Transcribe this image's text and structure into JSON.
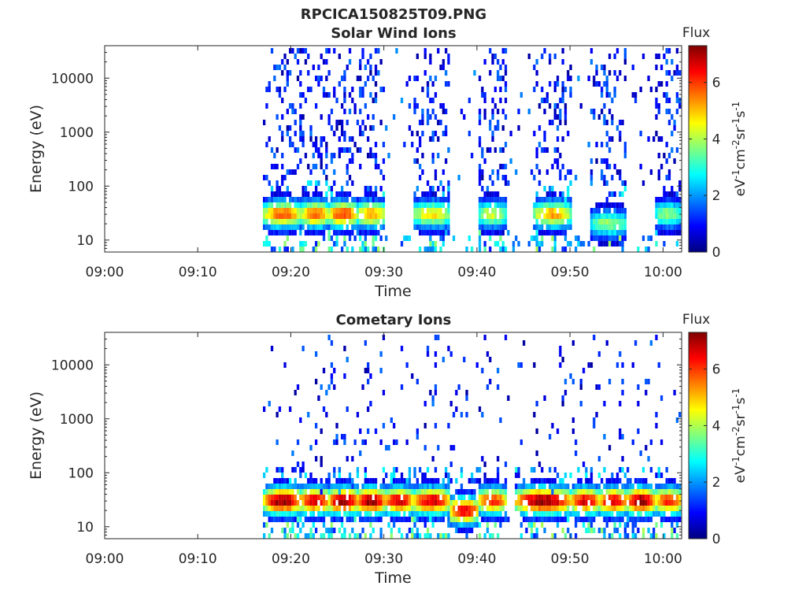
{
  "figure": {
    "title": "RPCICA150825T09.PNG"
  },
  "colorbar_stops": [
    "#00007f",
    "#0000ff",
    "#007fff",
    "#00ffff",
    "#7fff7f",
    "#ffff00",
    "#ff7f00",
    "#ff0000",
    "#7f0000"
  ],
  "chart_data": [
    {
      "type": "heatmap",
      "title": "Solar Wind Ions",
      "xlabel": "Time",
      "ylabel": "Energy (eV)",
      "yscale": "log",
      "ylim": [
        6,
        40000
      ],
      "xlim": [
        "09:00",
        "10:02"
      ],
      "x_ticks": [
        "09:00",
        "09:10",
        "09:20",
        "09:30",
        "09:40",
        "09:50",
        "10:00"
      ],
      "y_ticks": [
        "10",
        "100",
        "1000",
        "10000"
      ],
      "colorbar": {
        "title": "Flux",
        "label": "eV-1cm-2sr-1s-1",
        "range": [
          0,
          7.3
        ],
        "ticks": [
          "0",
          "2",
          "4",
          "6"
        ]
      },
      "data_start": "09:17",
      "bursts": [
        {
          "start": "09:17",
          "end": "09:21",
          "peak_energy_eV": 30,
          "peak_flux": 5.5
        },
        {
          "start": "09:21",
          "end": "09:24",
          "peak_energy_eV": 30,
          "peak_flux": 5.5
        },
        {
          "start": "09:24",
          "end": "09:27",
          "peak_energy_eV": 30,
          "peak_flux": 5.8
        },
        {
          "start": "09:27",
          "end": "09:30",
          "peak_energy_eV": 30,
          "peak_flux": 5.0
        },
        {
          "start": "09:33",
          "end": "09:37",
          "peak_energy_eV": 30,
          "peak_flux": 4.5
        },
        {
          "start": "09:40",
          "end": "09:43",
          "peak_energy_eV": 30,
          "peak_flux": 4.0
        },
        {
          "start": "09:46",
          "end": "09:50",
          "peak_energy_eV": 30,
          "peak_flux": 5.0
        },
        {
          "start": "09:52",
          "end": "09:56",
          "peak_energy_eV": 20,
          "peak_flux": 3.5
        },
        {
          "start": "09:59",
          "end": "10:02",
          "peak_energy_eV": 30,
          "peak_flux": 3.5
        }
      ]
    },
    {
      "type": "heatmap",
      "title": "Cometary Ions",
      "xlabel": "Time",
      "ylabel": "Energy (eV)",
      "yscale": "log",
      "ylim": [
        6,
        40000
      ],
      "xlim": [
        "09:00",
        "10:02"
      ],
      "x_ticks": [
        "09:00",
        "09:10",
        "09:20",
        "09:30",
        "09:40",
        "09:50",
        "10:00"
      ],
      "y_ticks": [
        "10",
        "100",
        "1000",
        "10000"
      ],
      "colorbar": {
        "title": "Flux",
        "label": "eV-1cm-2sr-1s-1",
        "range": [
          0,
          7.3
        ],
        "ticks": [
          "0",
          "2",
          "4",
          "6"
        ]
      },
      "data_start": "09:17",
      "bursts": [
        {
          "start": "09:17",
          "end": "09:21",
          "peak_energy_eV": 30,
          "peak_flux": 7.0
        },
        {
          "start": "09:21",
          "end": "09:24",
          "peak_energy_eV": 30,
          "peak_flux": 6.5
        },
        {
          "start": "09:24",
          "end": "09:27",
          "peak_energy_eV": 30,
          "peak_flux": 7.0
        },
        {
          "start": "09:27",
          "end": "09:30",
          "peak_energy_eV": 30,
          "peak_flux": 7.0
        },
        {
          "start": "09:30",
          "end": "09:33",
          "peak_energy_eV": 30,
          "peak_flux": 6.5
        },
        {
          "start": "09:33",
          "end": "09:37",
          "peak_energy_eV": 30,
          "peak_flux": 6.5
        },
        {
          "start": "09:37",
          "end": "09:40",
          "peak_energy_eV": 20,
          "peak_flux": 6.5
        },
        {
          "start": "09:40",
          "end": "09:43",
          "peak_energy_eV": 30,
          "peak_flux": 6.0
        },
        {
          "start": "09:44",
          "end": "09:50",
          "peak_energy_eV": 30,
          "peak_flux": 7.0
        },
        {
          "start": "09:50",
          "end": "09:53",
          "peak_energy_eV": 30,
          "peak_flux": 6.5
        },
        {
          "start": "09:53",
          "end": "09:56",
          "peak_energy_eV": 30,
          "peak_flux": 6.5
        },
        {
          "start": "09:56",
          "end": "09:59",
          "peak_energy_eV": 30,
          "peak_flux": 7.0
        },
        {
          "start": "09:59",
          "end": "10:02",
          "peak_energy_eV": 30,
          "peak_flux": 6.0
        }
      ]
    }
  ]
}
